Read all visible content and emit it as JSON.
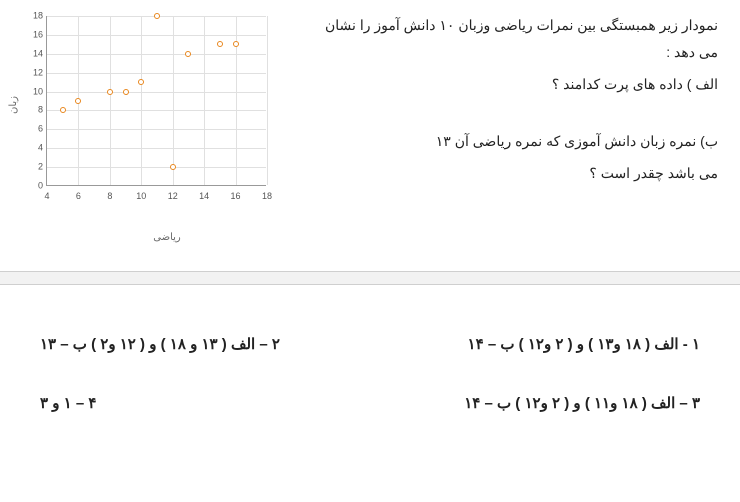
{
  "question": {
    "intro": "نمودار زیر همبستگی بین نمرات ریاضی وزبان ۱۰ دانش آموز را نشان می دهد :",
    "part_a": "الف ) داده های پرت کدامند ؟",
    "part_b_l1": "ب) نمره زبان دانش آموزی که نمره ریاضی آن ۱۳",
    "part_b_l2": "می باشد چقدر است ؟"
  },
  "chart": {
    "x_label": "ریاضی",
    "y_label": "زبان",
    "x_min": 4,
    "x_max": 18,
    "x_step": 2,
    "y_min": 0,
    "y_max": 18,
    "y_step": 2,
    "point_color": "#e8871e",
    "grid_color": "#e0e0e0",
    "points": [
      {
        "x": 5,
        "y": 8
      },
      {
        "x": 6,
        "y": 9
      },
      {
        "x": 8,
        "y": 10
      },
      {
        "x": 9,
        "y": 10
      },
      {
        "x": 10,
        "y": 11
      },
      {
        "x": 11,
        "y": 18
      },
      {
        "x": 12,
        "y": 2
      },
      {
        "x": 13,
        "y": 14
      },
      {
        "x": 15,
        "y": 15
      },
      {
        "x": 16,
        "y": 15
      }
    ]
  },
  "options": {
    "o1": "۱ -   الف ( ۱۸ و۱۳ ) و ( ۲ و۱۲ ) ب – ۱۴",
    "o2": "۲  – الف ( ۱۳ و ۱۸ ) و ( ۱۲ و۲ ) ب – ۱۳",
    "o3": "۳  – الف ( ۱۸ و۱۱ ) و ( ۲ و۱۲ ) ب – ۱۴",
    "o4": "۴ – ۱ و ۳"
  }
}
